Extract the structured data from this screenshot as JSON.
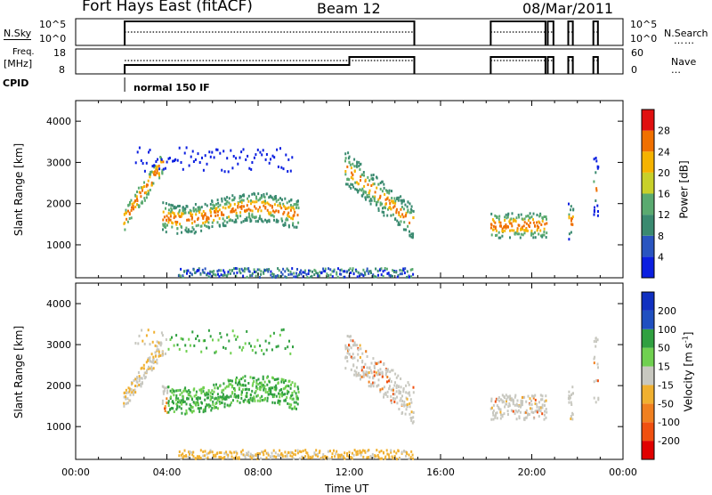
{
  "header": {
    "station": "Fort Hays East (fitACF)",
    "beam": "Beam 12",
    "date": "08/Mar/2011"
  },
  "noise_panel": {
    "left_label": "N.Sky",
    "right_label": "N.Search",
    "left_ticks": [
      "10^5",
      "10^0"
    ],
    "right_ticks": [
      "10^5",
      "10^0"
    ]
  },
  "freq_panel": {
    "left_label_1": "Freq.",
    "left_label_2": "[MHz]",
    "left_ticks": [
      "18",
      "8"
    ],
    "right_label": "Nave",
    "right_ticks": [
      "60",
      "0"
    ]
  },
  "cpid": {
    "label": "CPID",
    "mode": "normal 150 IF"
  },
  "colors": {
    "palette": [
      "#0b1fe0",
      "#2a55c0",
      "#3a8a70",
      "#5aaa70",
      "#c8d02a",
      "#f5b300",
      "#f07000",
      "#e01010"
    ],
    "vel_palette": [
      "#1030c0",
      "#2050c0",
      "#30a040",
      "#70d050",
      "#c8c8c0",
      "#f0b030",
      "#f08020",
      "#f05010",
      "#e00000"
    ]
  },
  "chart_data": [
    {
      "type": "heatmap",
      "title": "Power",
      "xlabel": "",
      "ylabel": "Slant Range [km]",
      "x_ticks": [
        "00:00",
        "04:00",
        "08:00",
        "12:00",
        "16:00",
        "20:00",
        "00:00"
      ],
      "y_ticks": [
        1000,
        2000,
        3000,
        4000
      ],
      "ylim": [
        200,
        4500
      ],
      "colorbar_label": "Power [dB]",
      "colorbar_ticks": [
        "4",
        "8",
        "12",
        "16",
        "20",
        "24",
        "28"
      ]
    },
    {
      "type": "heatmap",
      "title": "Velocity",
      "xlabel": "Time UT",
      "ylabel": "Slant Range [km]",
      "x_ticks": [
        "00:00",
        "04:00",
        "08:00",
        "12:00",
        "16:00",
        "20:00",
        "00:00"
      ],
      "y_ticks": [
        1000,
        2000,
        3000,
        4000
      ],
      "ylim": [
        200,
        4500
      ],
      "colorbar_label": "Velocity [m s^-1]",
      "colorbar_ticks": [
        "200",
        "100",
        "50",
        "15",
        "-15",
        "-50",
        "-100",
        "-200"
      ]
    }
  ]
}
